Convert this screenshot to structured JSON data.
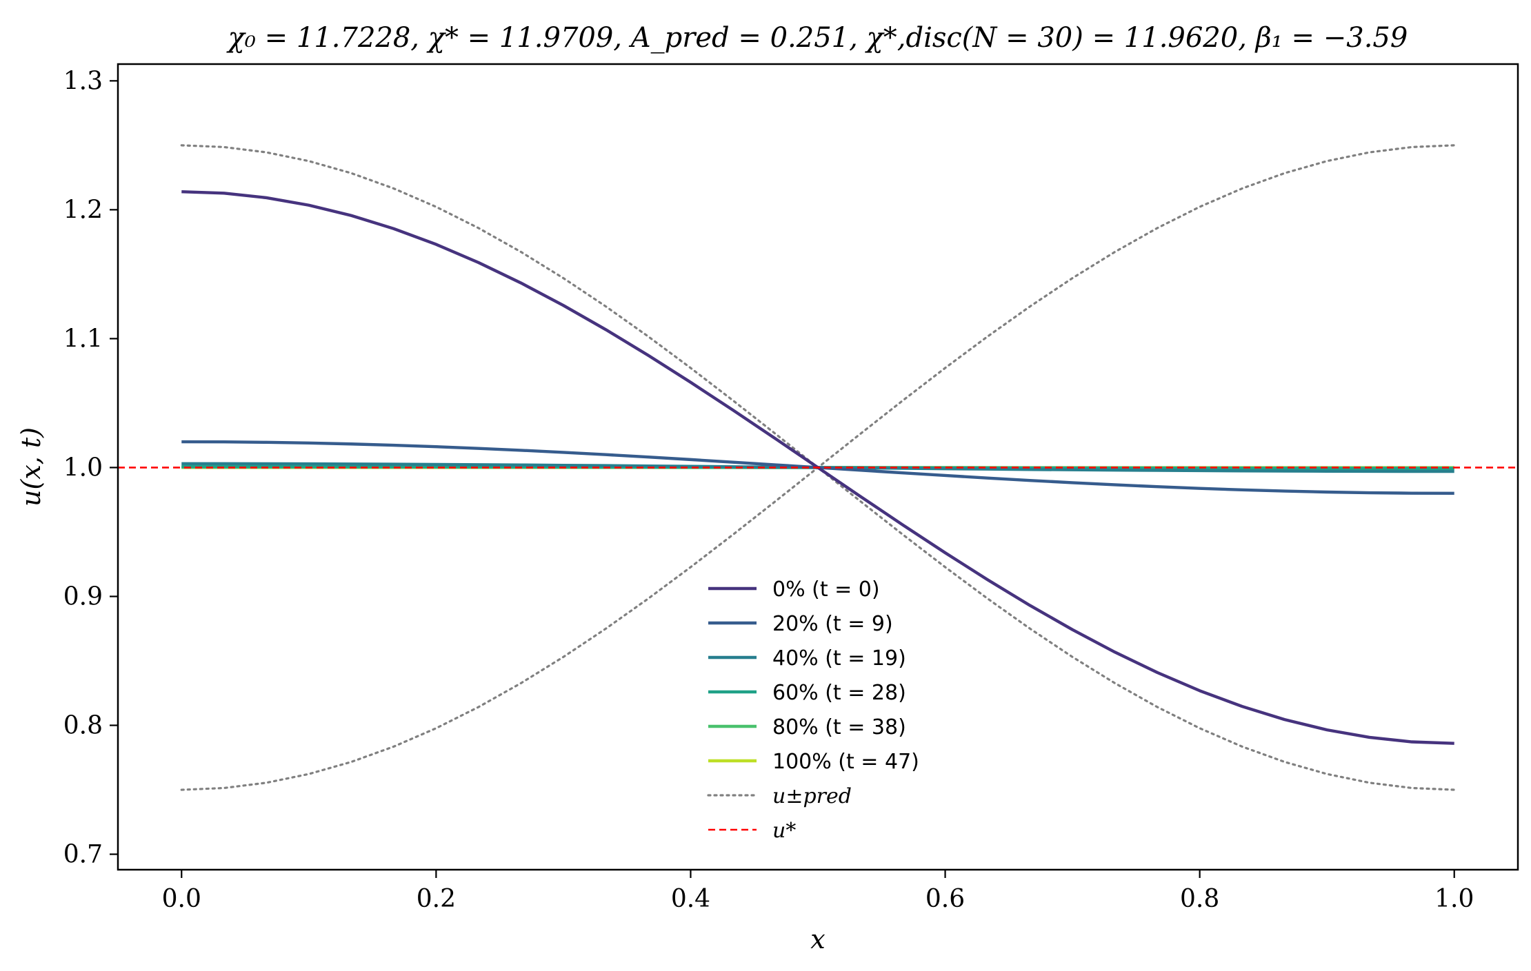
{
  "chart_data": {
    "type": "line",
    "title": "χ₀ = 11.7228,  χ* = 11.9709,  A_pred = 0.251,  χ*,disc(N = 30) = 11.9620,  β₁ = −3.59",
    "xlabel": "x",
    "ylabel": "u(x, t)",
    "xlim": [
      -0.05,
      1.05
    ],
    "ylim": [
      0.688,
      1.313
    ],
    "x_ticks": [
      {
        "value": 0.0,
        "label": "0.0"
      },
      {
        "value": 0.2,
        "label": "0.2"
      },
      {
        "value": 0.4,
        "label": "0.4"
      },
      {
        "value": 0.6,
        "label": "0.6"
      },
      {
        "value": 0.8,
        "label": "0.8"
      },
      {
        "value": 1.0,
        "label": "1.0"
      }
    ],
    "y_ticks": [
      {
        "value": 0.7,
        "label": "0.7"
      },
      {
        "value": 0.8,
        "label": "0.8"
      },
      {
        "value": 0.9,
        "label": "0.9"
      },
      {
        "value": 1.0,
        "label": "1.0"
      },
      {
        "value": 1.1,
        "label": "1.1"
      },
      {
        "value": 1.2,
        "label": "1.2"
      },
      {
        "value": 1.3,
        "label": "1.3"
      }
    ],
    "grid": false,
    "legend_position": "lower-center",
    "series": [
      {
        "name": "0% (t = 0)",
        "color": "#46337e",
        "style": "solid",
        "amplitude": 0.214
      },
      {
        "name": "20% (t = 9)",
        "color": "#365c8d",
        "style": "solid",
        "amplitude": 0.02
      },
      {
        "name": "40% (t = 19)",
        "color": "#277f8e",
        "style": "solid",
        "amplitude": 0.003
      },
      {
        "name": "60% (t = 28)",
        "color": "#1fa187",
        "style": "solid",
        "amplitude": 0.0008
      },
      {
        "name": "80% (t = 38)",
        "color": "#4ac16d",
        "style": "solid",
        "amplitude": 0.0003
      },
      {
        "name": "100% (t = 47)",
        "color": "#bddf26",
        "style": "solid",
        "amplitude": 0.0001
      }
    ],
    "prediction_envelope": {
      "name": "u±pred",
      "color": "#808080",
      "style": "dotted",
      "center": 1.0,
      "amplitude": 0.25
    },
    "steady_state": {
      "name": "u*",
      "color": "#ff0000",
      "style": "dashed",
      "value": 1.0
    },
    "n_points": 31
  }
}
